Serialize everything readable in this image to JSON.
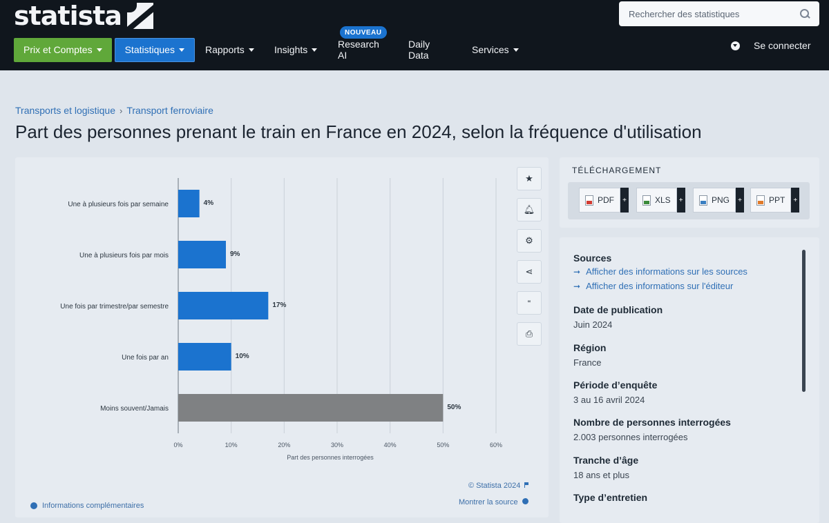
{
  "header": {
    "logo_text": "statista",
    "search_placeholder": "Rechercher des statistiques",
    "nav": {
      "prix": "Prix et Comptes",
      "statistiques": "Statistiques",
      "rapports": "Rapports",
      "insights": "Insights",
      "research": "Research AI",
      "research_badge": "NOUVEAU",
      "daily": "Daily Data",
      "services": "Services"
    },
    "login": "Se connecter"
  },
  "breadcrumb": [
    "Transports et logistique",
    "Transport ferroviaire"
  ],
  "title": "Part des personnes prenant le train en France en 2024, selon la fréquence d'utilisation",
  "chart_data": {
    "type": "bar",
    "orientation": "horizontal",
    "categories": [
      "Une à plusieurs fois par semaine",
      "Une à plusieurs fois par mois",
      "Une fois par trimestre/par semestre",
      "Une fois par an",
      "Moins souvent/Jamais"
    ],
    "values": [
      4,
      9,
      17,
      10,
      50
    ],
    "value_labels": [
      "4%",
      "9%",
      "17%",
      "10%",
      "50%"
    ],
    "bar_colors": [
      "#1b73cf",
      "#1b73cf",
      "#1b73cf",
      "#1b73cf",
      "#7f8183"
    ],
    "xlim": [
      0,
      60
    ],
    "xticks": [
      "0%",
      "10%",
      "20%",
      "30%",
      "40%",
      "50%",
      "60%"
    ],
    "xlabel": "Part des personnes interrogées",
    "grid": true
  },
  "chart_footer": {
    "copyright": "© Statista 2024",
    "show_source": "Montrer la source",
    "more_info": "Informations complémentaires"
  },
  "download": {
    "title": "TÉLÉCHARGEMENT",
    "formats": [
      "PDF",
      "XLS",
      "PNG",
      "PPT"
    ]
  },
  "info": {
    "sources_label": "Sources",
    "source_links": [
      "Afficher des informations sur les sources",
      "Afficher des informations sur l'éditeur"
    ],
    "pub_label": "Date de publication",
    "pub_value": "Juin 2024",
    "region_label": "Région",
    "region_value": "France",
    "period_label": "Période d’enquête",
    "period_value": "3 au 16 avril 2024",
    "n_label": "Nombre de personnes interrogées",
    "n_value": "2.003 personnes interrogées",
    "age_label": "Tranche d’âge",
    "age_value": "18 ans et plus",
    "interview_label": "Type d’entretien"
  },
  "icons": [
    "star-icon",
    "bell-icon",
    "gear-icon",
    "share-icon",
    "quote-icon",
    "print-icon"
  ]
}
